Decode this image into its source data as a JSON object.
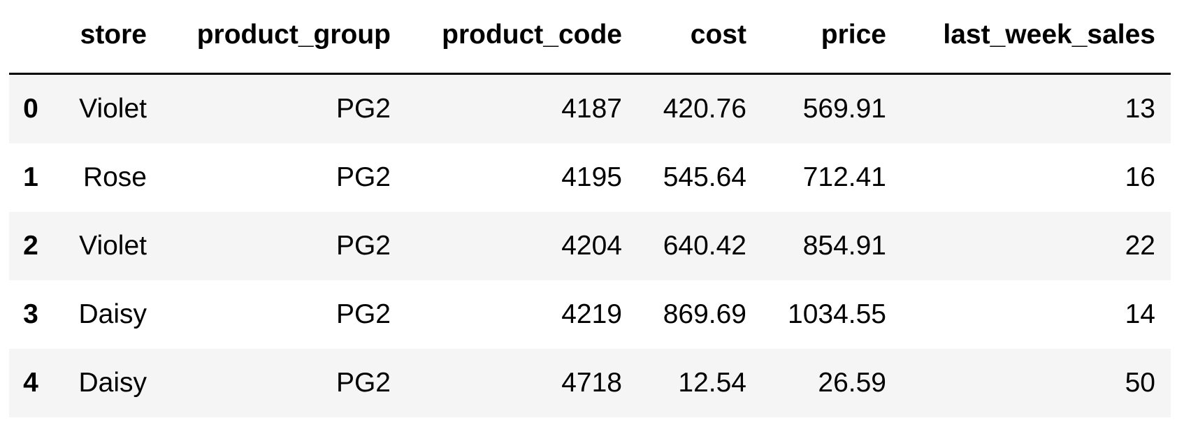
{
  "table": {
    "columns": [
      "",
      "store",
      "product_group",
      "product_code",
      "cost",
      "price",
      "last_week_sales"
    ],
    "rows": [
      {
        "index": "0",
        "store": "Violet",
        "product_group": "PG2",
        "product_code": "4187",
        "cost": "420.76",
        "price": "569.91",
        "last_week_sales": "13"
      },
      {
        "index": "1",
        "store": "Rose",
        "product_group": "PG2",
        "product_code": "4195",
        "cost": "545.64",
        "price": "712.41",
        "last_week_sales": "16"
      },
      {
        "index": "2",
        "store": "Violet",
        "product_group": "PG2",
        "product_code": "4204",
        "cost": "640.42",
        "price": "854.91",
        "last_week_sales": "22"
      },
      {
        "index": "3",
        "store": "Daisy",
        "product_group": "PG2",
        "product_code": "4219",
        "cost": "869.69",
        "price": "1034.55",
        "last_week_sales": "14"
      },
      {
        "index": "4",
        "store": "Daisy",
        "product_group": "PG2",
        "product_code": "4718",
        "cost": "12.54",
        "price": "26.59",
        "last_week_sales": "50"
      }
    ]
  }
}
